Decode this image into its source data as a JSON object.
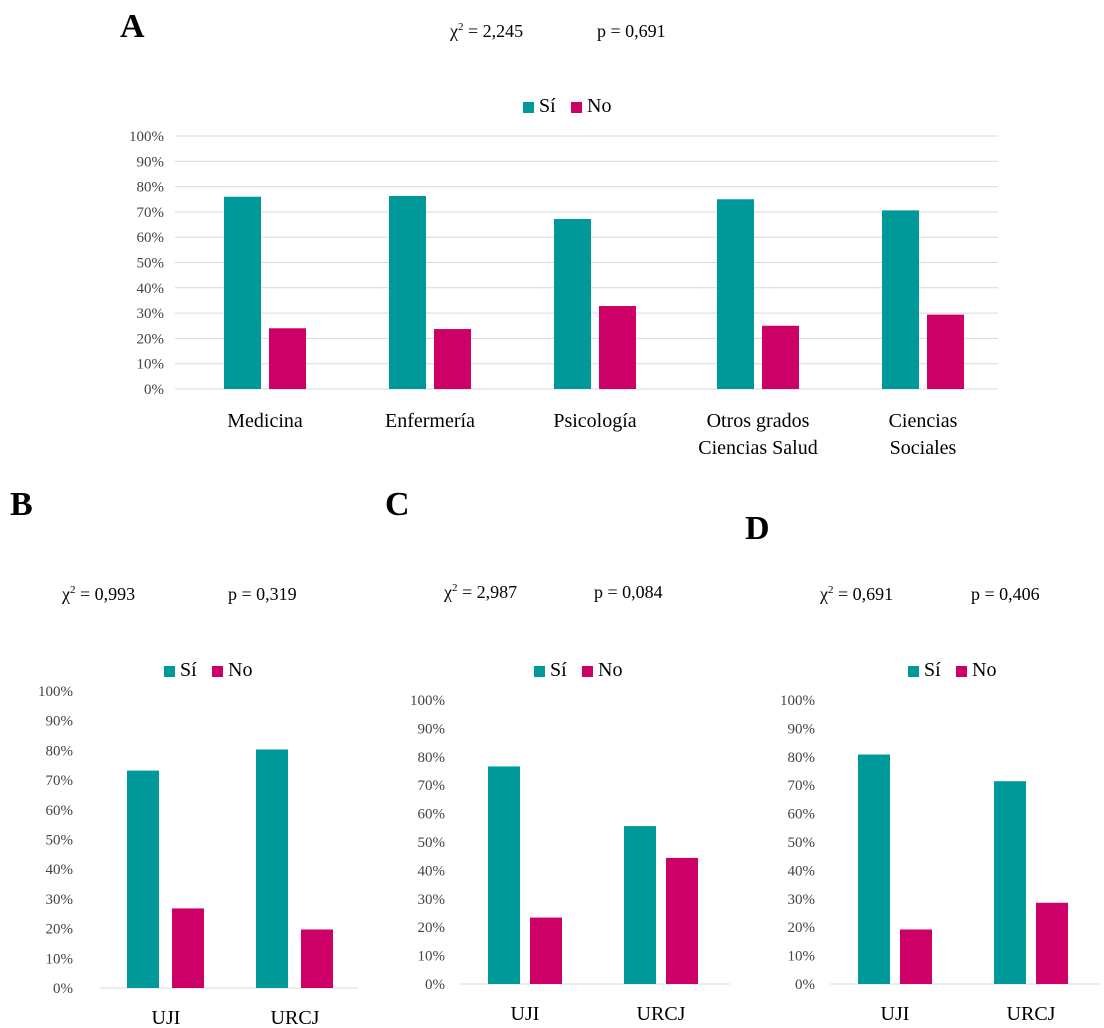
{
  "colors": {
    "si": "#009999",
    "no": "#CC0066"
  },
  "panels": {
    "A": {
      "letter": "A",
      "chi_label": "χ",
      "chi_value": " = 2,245",
      "p_text": "p = 0,691"
    },
    "B": {
      "letter": "B",
      "chi_label": "χ",
      "chi_value": " = 0,993",
      "p_text": "p = 0,319"
    },
    "C": {
      "letter": "C",
      "chi_label": "χ",
      "chi_value": " = 2,987",
      "p_text": "p = 0,084"
    },
    "D": {
      "letter": "D",
      "chi_label": "χ",
      "chi_value": " = 0,691",
      "p_text": "p = 0,406"
    }
  },
  "chart_data": [
    {
      "panel": "A",
      "type": "bar",
      "ylim": [
        0,
        100
      ],
      "yticks": [
        "0%",
        "10%",
        "20%",
        "30%",
        "40%",
        "50%",
        "60%",
        "70%",
        "80%",
        "90%",
        "100%"
      ],
      "grid": true,
      "legend": "top-center",
      "categories": [
        [
          "Medicina"
        ],
        [
          "Enfermería"
        ],
        [
          "Psicología"
        ],
        [
          "Otros grados",
          "Ciencias Salud"
        ],
        [
          "Ciencias",
          "Sociales"
        ]
      ],
      "series": [
        {
          "name": "Sí",
          "color": "#009999",
          "values": [
            76,
            76.3,
            67.2,
            75,
            70.6
          ]
        },
        {
          "name": "No",
          "color": "#CC0066",
          "values": [
            24,
            23.7,
            32.8,
            25,
            29.4
          ]
        }
      ]
    },
    {
      "panel": "B",
      "type": "bar",
      "ylim": [
        0,
        100
      ],
      "yticks": [
        "0%",
        "10%",
        "20%",
        "30%",
        "40%",
        "50%",
        "60%",
        "70%",
        "80%",
        "90%",
        "100%"
      ],
      "grid": false,
      "legend": "top-center",
      "categories": [
        [
          "UJI"
        ],
        [
          "URCJ"
        ]
      ],
      "series": [
        {
          "name": "Sí",
          "color": "#009999",
          "values": [
            73.2,
            80.3
          ]
        },
        {
          "name": "No",
          "color": "#CC0066",
          "values": [
            26.8,
            19.7
          ]
        }
      ]
    },
    {
      "panel": "C",
      "type": "bar",
      "ylim": [
        0,
        100
      ],
      "yticks": [
        "0%",
        "10%",
        "20%",
        "30%",
        "40%",
        "50%",
        "60%",
        "70%",
        "80%",
        "90%",
        "100%"
      ],
      "grid": false,
      "legend": "top-center",
      "categories": [
        [
          "UJI"
        ],
        [
          "URCJ"
        ]
      ],
      "series": [
        {
          "name": "Sí",
          "color": "#009999",
          "values": [
            76.6,
            55.6
          ]
        },
        {
          "name": "No",
          "color": "#CC0066",
          "values": [
            23.4,
            44.4
          ]
        }
      ]
    },
    {
      "panel": "D",
      "type": "bar",
      "ylim": [
        0,
        100
      ],
      "yticks": [
        "0%",
        "10%",
        "20%",
        "30%",
        "40%",
        "50%",
        "60%",
        "70%",
        "80%",
        "90%",
        "100%"
      ],
      "grid": false,
      "legend": "top-center",
      "categories": [
        [
          "UJI"
        ],
        [
          "URCJ"
        ]
      ],
      "series": [
        {
          "name": "Sí",
          "color": "#009999",
          "values": [
            80.8,
            71.4
          ]
        },
        {
          "name": "No",
          "color": "#CC0066",
          "values": [
            19.2,
            28.6
          ]
        }
      ]
    }
  ]
}
